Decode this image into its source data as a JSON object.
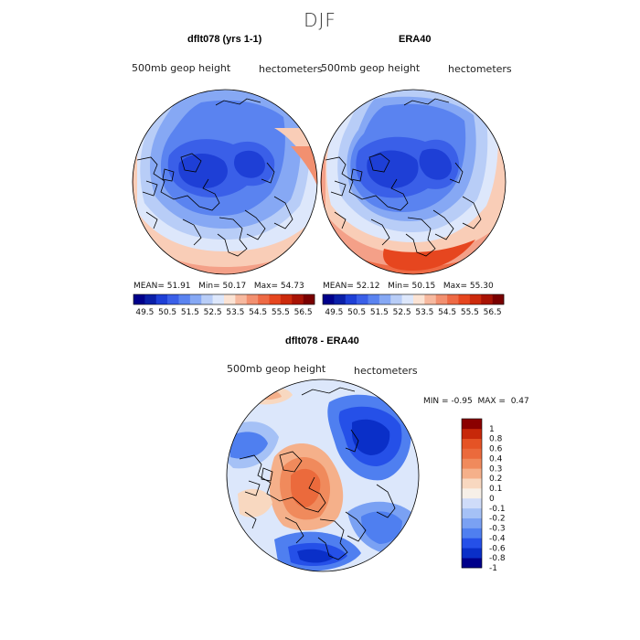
{
  "figure": {
    "title": "DJF",
    "variable": "500mb geop height",
    "units": "hectometers"
  },
  "panels": [
    {
      "title": "dflt078 (yrs 1-1)",
      "mean_label": "MEAN=",
      "mean": "51.91",
      "min_label": "Min=",
      "min": "50.17",
      "max_label": "Max=",
      "max": "54.73"
    },
    {
      "title": "ERA40",
      "mean_label": "MEAN=",
      "mean": "52.12",
      "min_label": "Min=",
      "min": "50.15",
      "max_label": "Max=",
      "max": "55.30"
    },
    {
      "title": "dflt078 - ERA40",
      "min_label": "MIN =",
      "min": "-0.95",
      "max_label": "MAX =",
      "max": "0.47"
    }
  ],
  "chart_data": [
    {
      "type": "heatmap",
      "projection": "north polar stereographic",
      "title": "dflt078 (yrs 1-1)",
      "subtitle": "500mb geop height",
      "units": "hectometers",
      "stats": {
        "mean": 51.91,
        "min": 50.17,
        "max": 54.73
      },
      "colorbar_ticks": [
        "49.5",
        "50.5",
        "51.5",
        "52.5",
        "53.5",
        "54.5",
        "55.5",
        "56.5"
      ]
    },
    {
      "type": "heatmap",
      "projection": "north polar stereographic",
      "title": "ERA40",
      "subtitle": "500mb geop height",
      "units": "hectometers",
      "stats": {
        "mean": 52.12,
        "min": 50.15,
        "max": 55.3
      },
      "colorbar_ticks": [
        "49.5",
        "50.5",
        "51.5",
        "52.5",
        "53.5",
        "54.5",
        "55.5",
        "56.5"
      ]
    },
    {
      "type": "heatmap",
      "projection": "north polar stereographic",
      "title": "dflt078 - ERA40",
      "subtitle": "500mb geop height",
      "units": "hectometers",
      "stats": {
        "min": -0.95,
        "max": 0.47
      },
      "colorbar_ticks": [
        "1",
        "0.8",
        "0.6",
        "0.4",
        "0.3",
        "0.2",
        "0.1",
        "0",
        "-0.1",
        "-0.2",
        "-0.3",
        "-0.4",
        "-0.6",
        "-0.8",
        "-1"
      ]
    }
  ],
  "colors": {
    "abs_scale": [
      "#00008b",
      "#0a1fa8",
      "#1e3fd6",
      "#3a5fe8",
      "#5a83f0",
      "#86a8f4",
      "#b8cdf7",
      "#dde7fb",
      "#fbe3d4",
      "#f7b99f",
      "#f29070",
      "#ee6a45",
      "#e6461f",
      "#cc2a0c",
      "#a81304",
      "#7a0000"
    ],
    "diff_scale": [
      "#00008b",
      "#0a2fc8",
      "#2550e8",
      "#4f7ff0",
      "#7aa1f3",
      "#a5c1f6",
      "#cfdcf9",
      "#f7f0e8",
      "#f8d8c0",
      "#f5b08a",
      "#f08a5c",
      "#eb6a3c",
      "#e55325",
      "#c7280a",
      "#8b0000"
    ],
    "land_outline": "#000000"
  }
}
